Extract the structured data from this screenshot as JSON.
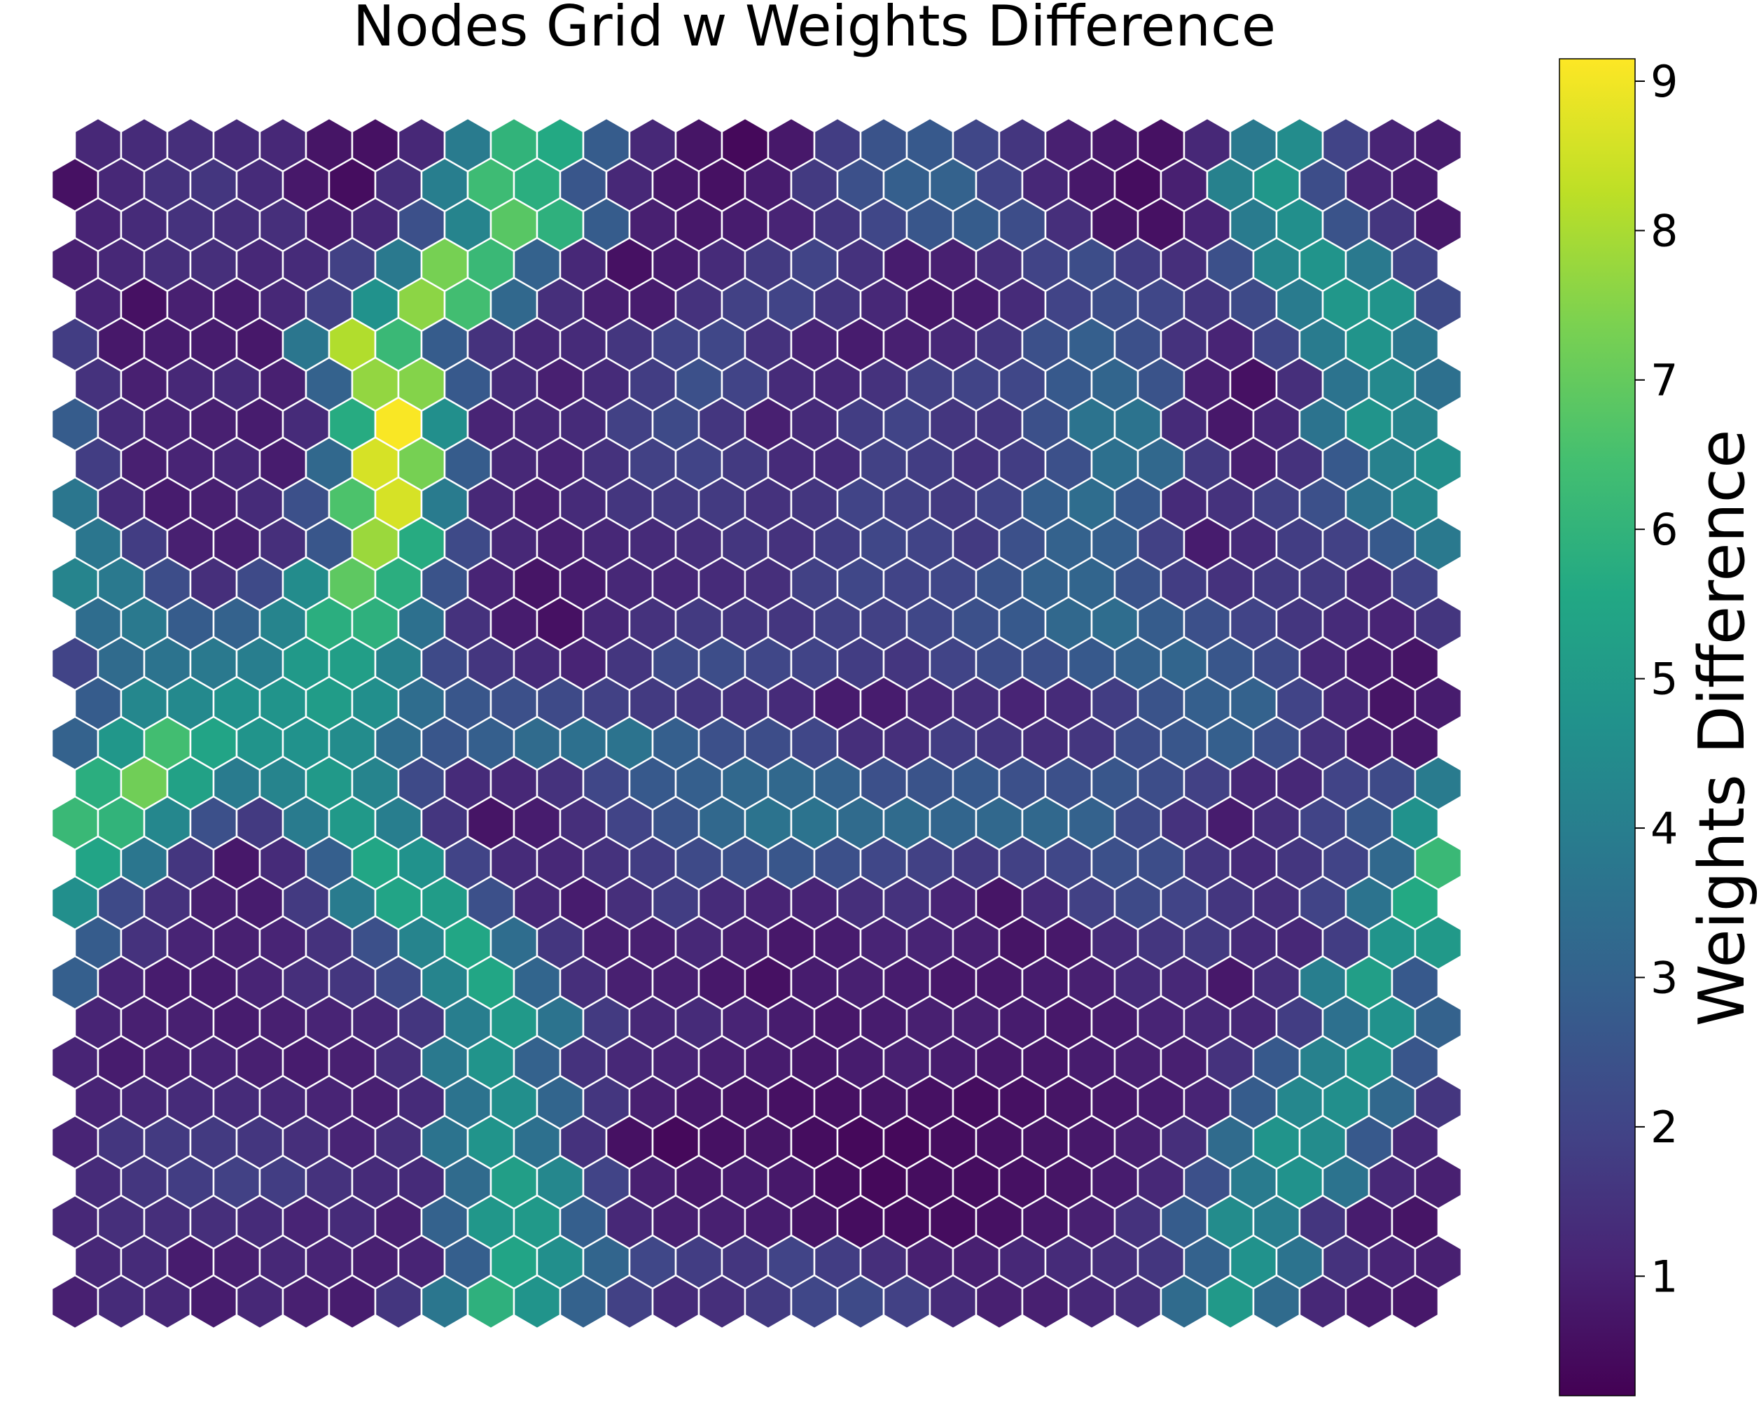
{
  "chart_data": {
    "type": "heatmap",
    "layout": "hexagonal",
    "title": "Nodes Grid w Weights Difference",
    "colorbar": {
      "label": "Weights Difference",
      "min": 0.2,
      "max": 9.15,
      "ticks": [
        1,
        2,
        3,
        4,
        5,
        6,
        7,
        8,
        9
      ],
      "tick_labels": [
        "1",
        "2",
        "3",
        "4",
        "5",
        "6",
        "7",
        "8",
        "9"
      ],
      "colormap": "viridis"
    },
    "rows": 30,
    "cols": 30,
    "row0_starts_offset": true,
    "grid": false,
    "cell_border_color": "#ffffff",
    "values": [
      [
        1.2,
        1.3,
        1.4,
        1.3,
        1.2,
        0.7,
        0.6,
        1.2,
        3.9,
        6.0,
        5.6,
        2.8,
        1.2,
        0.7,
        0.4,
        0.8,
        1.8,
        2.5,
        2.7,
        2.1,
        1.6,
        1.0,
        0.8,
        0.6,
        1.2,
        3.8,
        4.5,
        2.0,
        1.1,
        0.9
      ],
      [
        0.6,
        1.2,
        1.5,
        1.6,
        1.3,
        0.8,
        0.5,
        1.4,
        4.0,
        6.3,
        5.8,
        2.6,
        1.2,
        0.8,
        0.6,
        0.9,
        1.7,
        2.4,
        2.9,
        3.0,
        2.0,
        1.2,
        0.8,
        0.5,
        1.0,
        4.1,
        4.9,
        2.3,
        1.1,
        0.9
      ],
      [
        1.1,
        1.3,
        1.5,
        1.4,
        1.4,
        0.9,
        1.2,
        2.4,
        4.2,
        6.8,
        5.9,
        2.8,
        1.0,
        0.8,
        0.9,
        1.1,
        1.6,
        2.1,
        2.6,
        2.8,
        2.3,
        1.4,
        0.7,
        0.6,
        1.1,
        3.9,
        4.6,
        2.5,
        1.6,
        0.8
      ],
      [
        1.0,
        1.2,
        1.4,
        1.4,
        1.2,
        1.3,
        1.9,
        3.8,
        7.3,
        6.2,
        3.0,
        1.2,
        0.6,
        0.9,
        1.3,
        1.7,
        2.0,
        1.5,
        0.9,
        1.0,
        1.4,
        2.0,
        2.3,
        1.8,
        1.4,
        2.4,
        4.3,
        4.8,
        3.8,
        2.0
      ],
      [
        1.1,
        0.6,
        1.0,
        0.9,
        1.2,
        1.9,
        4.7,
        7.6,
        6.4,
        3.2,
        1.4,
        1.0,
        0.9,
        1.5,
        1.9,
        2.0,
        1.6,
        1.2,
        0.8,
        0.9,
        1.3,
        2.0,
        2.3,
        2.1,
        1.6,
        2.2,
        3.9,
        4.9,
        4.8,
        2.2
      ],
      [
        1.8,
        0.8,
        0.9,
        0.9,
        0.8,
        3.7,
        8.1,
        6.2,
        2.8,
        1.5,
        1.2,
        1.3,
        1.6,
        2.0,
        2.1,
        1.5,
        1.1,
        0.9,
        1.0,
        1.2,
        1.6,
        2.4,
        2.9,
        2.4,
        1.5,
        1.1,
        2.1,
        3.9,
        4.8,
        3.7
      ],
      [
        1.5,
        1.0,
        1.2,
        1.3,
        1.0,
        3.0,
        7.7,
        7.5,
        2.7,
        1.3,
        1.0,
        1.3,
        1.8,
        2.4,
        2.0,
        1.3,
        1.2,
        1.5,
        1.9,
        2.0,
        2.1,
        2.7,
        3.1,
        2.5,
        1.0,
        0.6,
        1.4,
        3.6,
        4.4,
        3.5
      ],
      [
        2.8,
        1.3,
        1.1,
        1.0,
        0.9,
        1.3,
        5.7,
        9.1,
        4.6,
        1.1,
        1.2,
        1.3,
        1.9,
        2.2,
        1.6,
        1.0,
        1.3,
        1.8,
        2.0,
        1.6,
        1.6,
        2.4,
        3.6,
        3.6,
        1.3,
        0.8,
        1.2,
        3.6,
        4.8,
        4.2
      ],
      [
        1.8,
        1.0,
        1.1,
        1.2,
        0.9,
        3.2,
        8.6,
        7.3,
        2.8,
        1.2,
        1.1,
        1.5,
        1.9,
        2.0,
        1.7,
        1.3,
        1.3,
        1.9,
        1.8,
        1.5,
        1.8,
        2.4,
        3.5,
        3.2,
        1.7,
        1.0,
        1.5,
        2.7,
        4.1,
        4.6
      ],
      [
        3.7,
        1.3,
        0.9,
        1.0,
        1.3,
        2.4,
        6.6,
        8.6,
        3.9,
        1.2,
        1.0,
        1.3,
        1.6,
        1.7,
        1.7,
        1.5,
        1.6,
        2.0,
        1.9,
        1.7,
        2.0,
        2.9,
        3.4,
        2.7,
        1.3,
        1.5,
        1.9,
        2.4,
        3.6,
        4.3
      ],
      [
        3.7,
        1.8,
        1.0,
        1.0,
        1.4,
        2.6,
        7.8,
        5.7,
        2.2,
        1.2,
        1.0,
        1.2,
        1.3,
        1.4,
        1.6,
        1.5,
        1.8,
        2.1,
        2.0,
        1.7,
        2.4,
        3.0,
        2.9,
        1.9,
        0.9,
        1.3,
        1.8,
        1.9,
        2.7,
        3.8
      ],
      [
        4.2,
        3.8,
        2.3,
        1.4,
        2.2,
        4.5,
        6.9,
        5.8,
        2.5,
        1.1,
        0.7,
        0.9,
        1.2,
        1.2,
        1.3,
        1.4,
        1.9,
        2.1,
        2.0,
        2.1,
        2.5,
        3.0,
        3.1,
        2.5,
        1.8,
        1.5,
        1.7,
        1.7,
        1.3,
        2.0
      ],
      [
        3.4,
        3.8,
        2.8,
        3.0,
        4.2,
        5.8,
        5.9,
        3.5,
        1.5,
        0.9,
        0.6,
        1.2,
        1.5,
        1.7,
        1.6,
        1.6,
        1.9,
        1.9,
        2.1,
        2.4,
        2.7,
        3.2,
        3.4,
        2.8,
        2.4,
        2.0,
        1.6,
        1.3,
        1.1,
        1.6
      ],
      [
        2.0,
        3.3,
        3.6,
        3.8,
        4.0,
        5.0,
        5.2,
        4.1,
        2.2,
        1.6,
        1.3,
        1.1,
        1.6,
        2.2,
        2.3,
        2.1,
        2.0,
        1.8,
        1.6,
        2.0,
        2.3,
        2.4,
        2.7,
        3.0,
        3.1,
        2.6,
        2.2,
        1.2,
        0.9,
        0.7
      ],
      [
        2.8,
        4.3,
        4.4,
        4.7,
        4.8,
        5.1,
        4.6,
        3.4,
        2.6,
        2.4,
        2.2,
        1.9,
        1.7,
        1.6,
        1.5,
        1.3,
        0.9,
        0.9,
        1.2,
        1.4,
        1.1,
        1.3,
        1.8,
        2.5,
        2.9,
        3.0,
        2.0,
        1.2,
        0.7,
        0.9
      ],
      [
        3.0,
        4.9,
        6.4,
        5.4,
        4.8,
        4.7,
        4.5,
        3.4,
        2.6,
        2.9,
        3.3,
        3.5,
        3.6,
        2.9,
        2.4,
        2.3,
        2.1,
        1.4,
        1.4,
        1.8,
        1.6,
        1.4,
        1.6,
        2.3,
        2.6,
        2.9,
        2.4,
        1.5,
        0.9,
        0.8
      ],
      [
        5.8,
        7.2,
        5.3,
        3.9,
        4.2,
        5.0,
        4.2,
        2.2,
        1.3,
        1.2,
        1.5,
        2.1,
        2.7,
        2.9,
        3.2,
        3.2,
        3.0,
        2.4,
        2.5,
        2.7,
        2.4,
        2.4,
        2.6,
        2.3,
        1.9,
        1.2,
        1.2,
        2.0,
        2.2,
        3.9
      ],
      [
        6.2,
        6.0,
        4.3,
        2.4,
        1.7,
        3.9,
        5.0,
        4.0,
        1.6,
        0.7,
        0.9,
        1.4,
        2.0,
        2.5,
        3.2,
        3.6,
        3.6,
        3.3,
        3.3,
        3.1,
        3.2,
        3.2,
        3.0,
        2.2,
        1.5,
        0.9,
        1.4,
        2.0,
        2.6,
        4.7
      ],
      [
        5.4,
        3.7,
        1.6,
        0.8,
        1.3,
        2.9,
        5.5,
        4.7,
        2.0,
        1.3,
        1.2,
        1.5,
        1.8,
        2.2,
        2.4,
        2.6,
        2.4,
        2.1,
        1.9,
        1.7,
        1.9,
        2.1,
        2.4,
        2.3,
        1.6,
        1.3,
        1.6,
        2.0,
        3.2,
        6.2
      ],
      [
        4.6,
        2.2,
        1.5,
        1.0,
        0.9,
        1.7,
        3.9,
        5.4,
        5.1,
        2.4,
        1.2,
        0.9,
        1.4,
        1.8,
        1.3,
        1.1,
        1.1,
        1.4,
        1.5,
        1.1,
        0.7,
        1.3,
        1.9,
        2.2,
        2.0,
        1.6,
        1.4,
        2.0,
        3.6,
        5.6
      ],
      [
        2.8,
        1.5,
        1.1,
        1.0,
        1.1,
        1.5,
        2.4,
        4.2,
        5.5,
        3.4,
        1.6,
        1.0,
        1.0,
        1.2,
        1.0,
        0.8,
        0.9,
        1.1,
        1.1,
        1.0,
        0.7,
        0.8,
        1.3,
        1.6,
        1.7,
        1.3,
        1.2,
        1.8,
        4.8,
        5.0
      ],
      [
        2.9,
        1.1,
        0.9,
        0.9,
        1.1,
        1.4,
        1.6,
        2.2,
        4.2,
        5.5,
        3.1,
        1.4,
        1.0,
        1.0,
        0.8,
        0.6,
        0.9,
        1.0,
        0.9,
        0.8,
        0.8,
        0.9,
        1.0,
        1.3,
        1.2,
        0.8,
        1.4,
        4.0,
        5.2,
        2.7
      ],
      [
        1.1,
        1.0,
        1.0,
        0.9,
        1.0,
        1.1,
        1.2,
        1.6,
        4.0,
        5.0,
        3.6,
        1.7,
        1.2,
        1.3,
        1.1,
        0.9,
        0.8,
        0.9,
        1.0,
        1.0,
        0.9,
        0.8,
        0.9,
        1.1,
        1.2,
        1.2,
        1.8,
        3.5,
        4.7,
        3.0
      ],
      [
        1.1,
        0.9,
        1.0,
        1.1,
        1.0,
        0.9,
        1.0,
        1.4,
        3.8,
        4.8,
        3.0,
        1.5,
        1.2,
        1.1,
        1.0,
        0.9,
        0.8,
        0.9,
        1.0,
        0.9,
        0.8,
        0.8,
        0.9,
        1.0,
        1.0,
        1.5,
        2.7,
        4.1,
        4.8,
        2.6
      ],
      [
        1.1,
        1.2,
        1.3,
        1.3,
        1.2,
        1.1,
        1.0,
        1.3,
        3.6,
        4.6,
        3.1,
        1.6,
        1.0,
        0.8,
        0.7,
        0.6,
        0.6,
        0.7,
        0.6,
        0.5,
        0.6,
        0.7,
        0.8,
        0.9,
        1.1,
        2.8,
        4.3,
        4.6,
        3.2,
        1.6
      ],
      [
        1.1,
        1.6,
        1.7,
        1.7,
        1.6,
        1.4,
        1.1,
        1.4,
        3.6,
        4.8,
        3.5,
        1.5,
        0.6,
        0.4,
        0.6,
        0.7,
        0.5,
        0.4,
        0.4,
        0.5,
        0.6,
        0.7,
        0.8,
        1.0,
        1.4,
        3.3,
        4.8,
        4.5,
        2.7,
        1.2
      ],
      [
        1.3,
        1.6,
        1.8,
        1.9,
        1.8,
        1.5,
        1.3,
        1.3,
        3.3,
        5.2,
        4.3,
        2.0,
        1.0,
        0.8,
        0.9,
        0.8,
        0.5,
        0.4,
        0.5,
        0.5,
        0.6,
        0.7,
        0.9,
        1.2,
        2.4,
        3.9,
        4.7,
        3.6,
        1.2,
        1.0
      ],
      [
        1.2,
        1.4,
        1.4,
        1.4,
        1.3,
        1.1,
        1.3,
        1.0,
        3.0,
        4.9,
        5.0,
        2.9,
        1.2,
        1.0,
        1.0,
        0.9,
        0.7,
        0.5,
        0.5,
        0.5,
        0.6,
        0.8,
        1.0,
        1.5,
        2.8,
        4.5,
        4.0,
        1.6,
        0.9,
        0.7
      ],
      [
        1.2,
        1.3,
        0.9,
        1.0,
        1.2,
        1.1,
        1.0,
        1.1,
        2.9,
        5.4,
        4.6,
        3.1,
        2.1,
        1.8,
        1.6,
        2.0,
        1.8,
        1.4,
        1.0,
        1.0,
        1.2,
        1.3,
        1.4,
        1.6,
        3.0,
        4.7,
        3.6,
        1.5,
        1.1,
        1.0
      ],
      [
        1.0,
        1.3,
        1.2,
        0.9,
        1.2,
        1.0,
        0.9,
        1.6,
        3.7,
        5.9,
        4.8,
        3.0,
        1.9,
        1.3,
        1.4,
        1.7,
        2.1,
        2.2,
        1.9,
        1.3,
        1.0,
        1.0,
        1.2,
        1.4,
        3.3,
        5.0,
        3.3,
        1.2,
        0.9,
        0.8
      ]
    ]
  }
}
